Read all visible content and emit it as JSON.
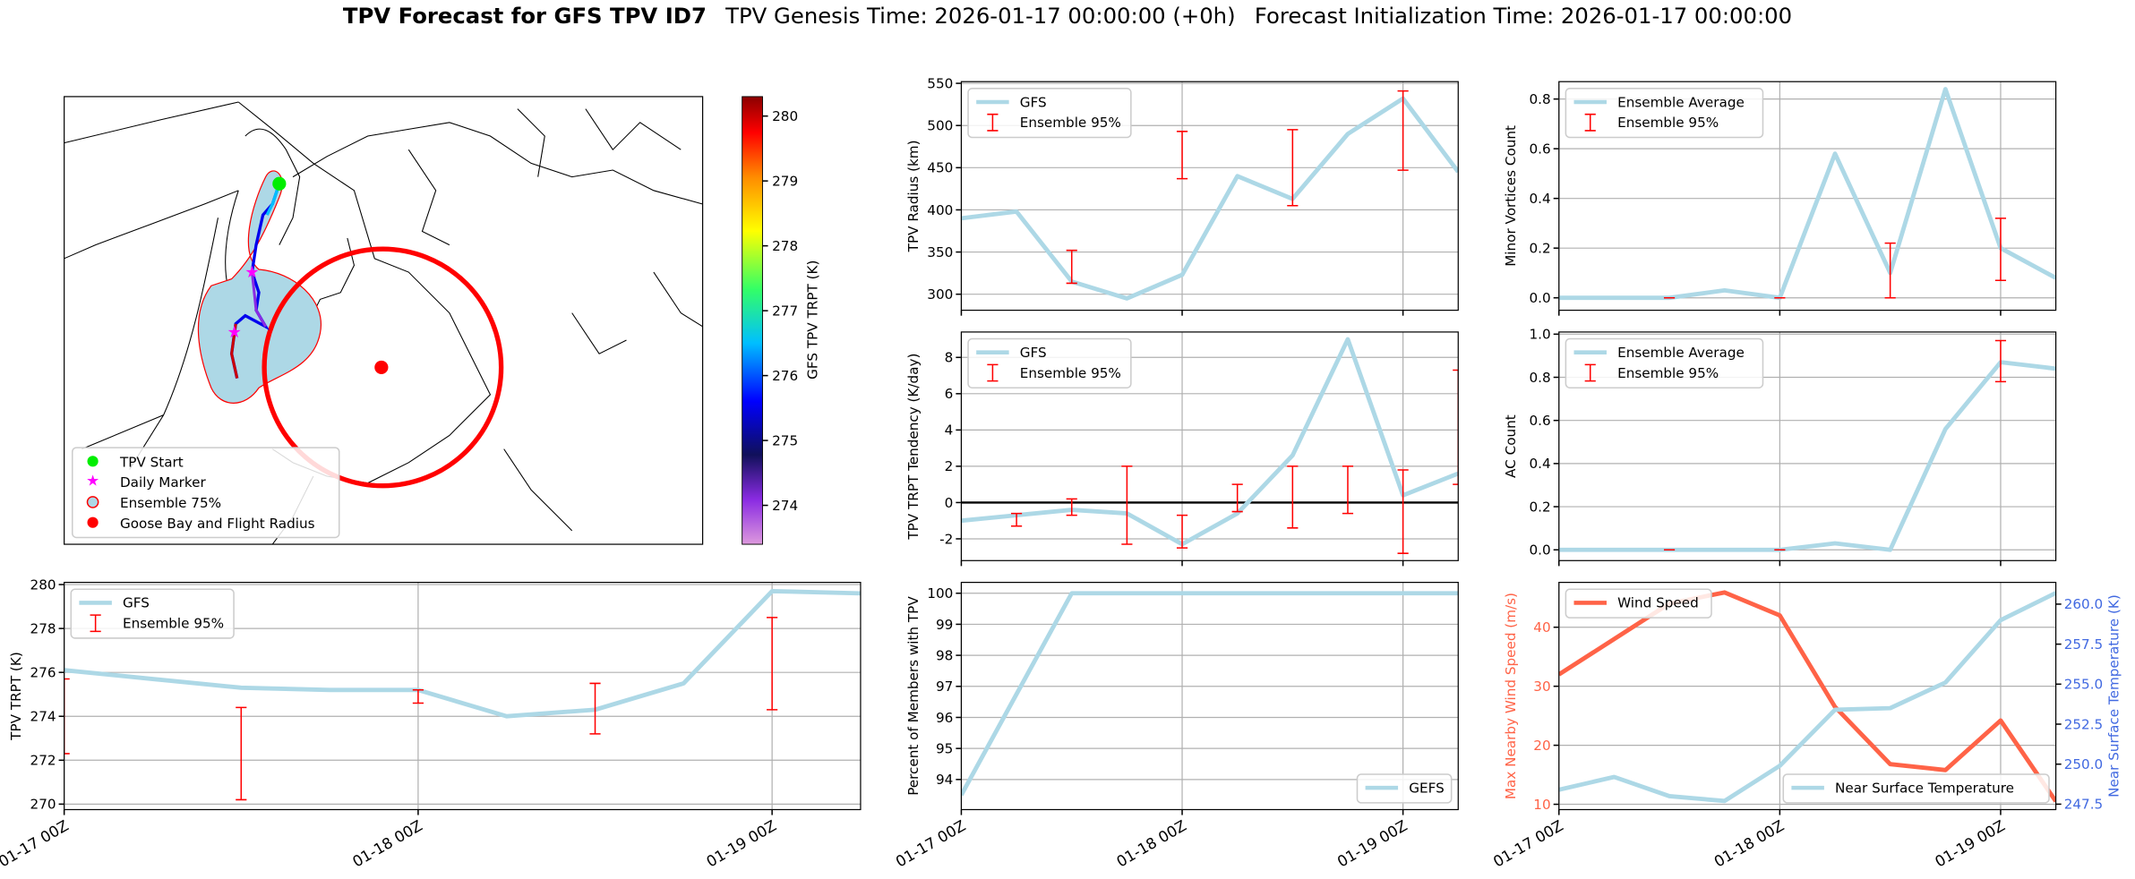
{
  "title": {
    "main": "TPV Forecast for GFS TPV ID7",
    "genesis": "TPV Genesis Time: 2026-01-17 00:00:00 (+0h)",
    "init": "Forecast Initialization Time: 2026-01-17 00:00:00"
  },
  "chart_data": [
    {
      "type": "map",
      "legend": [
        "TPV Start",
        "Daily Marker",
        "Ensemble 75%",
        "Goose Bay and Flight Radius"
      ],
      "colorbar": {
        "label": "GFS TPV TRPT (K)",
        "lim": [
          273.4,
          280.3
        ],
        "ticks": [
          274,
          275,
          276,
          277,
          278,
          279,
          280
        ]
      }
    },
    {
      "type": "line",
      "ylabel": "TPV Radius (km)",
      "x": [
        0,
        6,
        12,
        18,
        24,
        30,
        36,
        42,
        48,
        54
      ],
      "xlim": [
        0,
        54
      ],
      "xticks": [
        {
          "value": 0,
          "label": "01-17 00Z"
        },
        {
          "value": 24,
          "label": "01-18 00Z"
        },
        {
          "value": 48,
          "label": "01-19 00Z"
        }
      ],
      "xtick_labels": false,
      "ylim": [
        281,
        552
      ],
      "yticks": [
        300,
        350,
        400,
        450,
        500,
        550
      ],
      "grid": true,
      "legend": "upper left",
      "series": [
        {
          "name": "GFS",
          "color": "#add8e6",
          "values": [
            390,
            398,
            315,
            295,
            323,
            440,
            413,
            490,
            532,
            445
          ]
        }
      ],
      "errorbars": {
        "name": "Ensemble 95%",
        "color": "#ff0000",
        "low": [
          null,
          null,
          313,
          null,
          437,
          null,
          405,
          null,
          447,
          null
        ],
        "high": [
          null,
          null,
          352,
          null,
          493,
          null,
          495,
          null,
          541,
          null
        ]
      }
    },
    {
      "type": "line",
      "ylabel": "Minor Vortices Count",
      "x": [
        0,
        6,
        12,
        18,
        24,
        30,
        36,
        42,
        48,
        54
      ],
      "xlim": [
        0,
        54
      ],
      "xticks": [
        {
          "value": 0,
          "label": "01-17 00Z"
        },
        {
          "value": 24,
          "label": "01-18 00Z"
        },
        {
          "value": 48,
          "label": "01-19 00Z"
        }
      ],
      "xtick_labels": false,
      "ylim": [
        -0.05,
        0.87
      ],
      "yticks": [
        {
          "value": 0,
          "label": "0.0"
        },
        0.2,
        0.4,
        0.6,
        0.8
      ],
      "grid": true,
      "legend": "upper left",
      "series": [
        {
          "name": "Ensemble Average",
          "color": "#add8e6",
          "values": [
            0,
            0,
            0,
            0.03,
            0,
            0.58,
            0.1,
            0.84,
            0.2,
            0.08
          ]
        }
      ],
      "errorbars": {
        "name": "Ensemble 95%",
        "color": "#ff0000",
        "low": [
          null,
          null,
          0,
          null,
          0,
          null,
          0,
          null,
          0.07,
          null
        ],
        "high": [
          null,
          null,
          0,
          null,
          0,
          null,
          0.22,
          null,
          0.32,
          null
        ]
      }
    },
    {
      "type": "line",
      "ylabel": "TPV TRPT Tendency (K/day)",
      "x": [
        0,
        6,
        12,
        18,
        24,
        30,
        36,
        42,
        48,
        54
      ],
      "xlim": [
        0,
        54
      ],
      "xticks": [
        {
          "value": 0,
          "label": "01-17 00Z"
        },
        {
          "value": 24,
          "label": "01-18 00Z"
        },
        {
          "value": 48,
          "label": "01-19 00Z"
        }
      ],
      "xtick_labels": false,
      "ylim": [
        -3.2,
        9.4
      ],
      "yticks": [
        -2,
        0,
        2,
        4,
        6,
        8
      ],
      "grid": true,
      "legend": "upper left",
      "hline": 0,
      "series": [
        {
          "name": "GFS",
          "color": "#add8e6",
          "values": [
            -1.0,
            -0.7,
            -0.4,
            -0.6,
            -2.3,
            -0.6,
            2.6,
            9.0,
            0.4,
            1.6
          ]
        }
      ],
      "errorbars": {
        "name": "Ensemble 95%",
        "color": "#ff0000",
        "low": [
          null,
          -1.3,
          -0.7,
          -2.3,
          -2.5,
          -0.5,
          -1.4,
          -0.6,
          -2.8,
          1.0
        ],
        "high": [
          null,
          -0.6,
          0.2,
          2.0,
          -0.7,
          1.0,
          2.0,
          2.0,
          1.8,
          7.3
        ]
      }
    },
    {
      "type": "line",
      "ylabel": "AC Count",
      "x": [
        0,
        6,
        12,
        18,
        24,
        30,
        36,
        42,
        48,
        54
      ],
      "xlim": [
        0,
        54
      ],
      "xticks": [
        {
          "value": 0,
          "label": "01-17 00Z"
        },
        {
          "value": 24,
          "label": "01-18 00Z"
        },
        {
          "value": 48,
          "label": "01-19 00Z"
        }
      ],
      "xtick_labels": false,
      "ylim": [
        -0.05,
        1.01
      ],
      "yticks": [
        {
          "value": 0,
          "label": "0.0"
        },
        0.2,
        0.4,
        0.6,
        0.8,
        {
          "value": 1,
          "label": "1.0"
        }
      ],
      "grid": true,
      "legend": "upper left",
      "series": [
        {
          "name": "Ensemble Average",
          "color": "#add8e6",
          "values": [
            0,
            0,
            0,
            0,
            0,
            0.03,
            0,
            0.56,
            0.87,
            0.84
          ]
        }
      ],
      "errorbars": {
        "name": "Ensemble 95%",
        "color": "#ff0000",
        "low": [
          null,
          null,
          0,
          null,
          0,
          null,
          null,
          null,
          0.78,
          null
        ],
        "high": [
          null,
          null,
          0,
          null,
          0,
          null,
          null,
          null,
          0.97,
          null
        ]
      }
    },
    {
      "type": "line",
      "ylabel": "TPV TRPT (K)",
      "x": [
        0,
        6,
        12,
        18,
        24,
        30,
        36,
        42,
        48,
        54
      ],
      "xlim": [
        0,
        54
      ],
      "xticks": [
        {
          "value": 0,
          "label": "01-17 00Z"
        },
        {
          "value": 24,
          "label": "01-18 00Z"
        },
        {
          "value": 48,
          "label": "01-19 00Z"
        }
      ],
      "xtick_labels": true,
      "ylim": [
        269.75,
        280.1
      ],
      "yticks": [
        270,
        272,
        274,
        276,
        278,
        280
      ],
      "grid": true,
      "legend": "upper left",
      "series": [
        {
          "name": "GFS",
          "color": "#add8e6",
          "values": [
            276.1,
            275.7,
            275.3,
            275.2,
            275.2,
            274.0,
            274.3,
            275.5,
            279.7,
            279.6
          ]
        }
      ],
      "errorbars": {
        "name": "Ensemble 95%",
        "color": "#ff0000",
        "low": [
          272.3,
          null,
          270.2,
          null,
          274.6,
          null,
          273.2,
          null,
          274.3,
          null
        ],
        "high": [
          275.7,
          null,
          274.4,
          null,
          275.2,
          null,
          275.5,
          null,
          278.5,
          null
        ]
      }
    },
    {
      "type": "line",
      "ylabel": "Percent of Members with TPV",
      "x": [
        0,
        6,
        12,
        18,
        24,
        30,
        36,
        42,
        48,
        54
      ],
      "xlim": [
        0,
        54
      ],
      "xticks": [
        {
          "value": 0,
          "label": "01-17 00Z"
        },
        {
          "value": 24,
          "label": "01-18 00Z"
        },
        {
          "value": 48,
          "label": "01-19 00Z"
        }
      ],
      "xtick_labels": true,
      "ylim": [
        93.03,
        100.35
      ],
      "yticks": [
        94,
        95,
        96,
        97,
        98,
        99,
        100
      ],
      "grid": true,
      "legend": "lower right",
      "series": [
        {
          "name": "GEFS",
          "color": "#add8e6",
          "values": [
            93.5,
            96.75,
            100,
            100,
            100,
            100,
            100,
            100,
            100,
            100
          ]
        }
      ]
    },
    {
      "type": "line",
      "ylabel": "Max Nearby Wind Speed (m/s)",
      "ylabel_color": "#ff6347",
      "y2label": "Near Surface Temperature (K)",
      "y2label_color": "#4169e1",
      "x": [
        0,
        6,
        12,
        18,
        24,
        30,
        36,
        42,
        48,
        54
      ],
      "xlim": [
        0,
        54
      ],
      "xticks": [
        {
          "value": 0,
          "label": "01-17 00Z"
        },
        {
          "value": 24,
          "label": "01-18 00Z"
        },
        {
          "value": 48,
          "label": "01-19 00Z"
        }
      ],
      "xtick_labels": true,
      "ylim": [
        9.1,
        47.6
      ],
      "yticks": [
        10,
        20,
        30,
        40
      ],
      "y2lim": [
        247.16,
        261.36
      ],
      "y2ticks": [
        247.5,
        {
          "value": 250,
          "label": "250.0"
        },
        252.5,
        {
          "value": 255,
          "label": "255.0"
        },
        257.5,
        {
          "value": 260,
          "label": "260.0"
        }
      ],
      "grid": true,
      "legend": "upper left",
      "legend2": "lower right",
      "series": [
        {
          "name": "Wind Speed",
          "color": "#ff6347",
          "values": [
            32,
            38,
            44,
            45.9,
            42,
            26.5,
            16.8,
            15.8,
            24.2,
            10.5
          ]
        },
        {
          "name": "Near Surface Temperature",
          "color": "#add8e6",
          "axis": "y2",
          "values": [
            248.4,
            249.2,
            248.0,
            247.7,
            249.9,
            253.4,
            253.5,
            255.1,
            259.0,
            260.7
          ]
        }
      ]
    }
  ]
}
